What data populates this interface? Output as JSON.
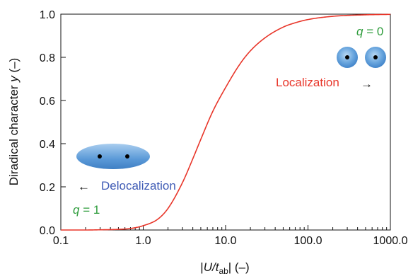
{
  "chart_data": {
    "type": "line",
    "xscale": "log",
    "xlim": [
      0.1,
      1000.0
    ],
    "ylim": [
      0.0,
      1.0
    ],
    "xticks": [
      "0.1",
      "1.0",
      "10.0",
      "100.0",
      "1000.0"
    ],
    "xtick_values": [
      0.1,
      1.0,
      10.0,
      100.0,
      1000.0
    ],
    "yticks": [
      "0.0",
      "0.2",
      "0.4",
      "0.6",
      "0.8",
      "1.0"
    ],
    "ytick_values": [
      0.0,
      0.2,
      0.4,
      0.6,
      0.8,
      1.0
    ],
    "ylabel": {
      "pre": "Diradical character ",
      "var": "y",
      "post": " (–)"
    },
    "xlabel": {
      "pre": "|",
      "var": "U/t",
      "sub": "ab",
      "post": "| (–)"
    },
    "grid": false,
    "series": [
      {
        "color": "#e8362a",
        "x": [
          0.1,
          0.2,
          0.3,
          0.5,
          0.7,
          1.0,
          1.5,
          2.0,
          3.0,
          4.0,
          5.0,
          7.0,
          10.0,
          15.0,
          20.0,
          30.0,
          50.0,
          70.0,
          100.0,
          200.0,
          500.0,
          1000.0
        ],
        "y": [
          0.0,
          0.0,
          0.001,
          0.003,
          0.007,
          0.02,
          0.05,
          0.1,
          0.22,
          0.33,
          0.42,
          0.55,
          0.66,
          0.77,
          0.83,
          0.89,
          0.94,
          0.96,
          0.975,
          0.99,
          0.997,
          0.999
        ]
      }
    ],
    "annotations": {
      "q0": {
        "pre": "q",
        "post": " = 0",
        "color": "#2e9c3c"
      },
      "q1": {
        "pre": "q",
        "post": " = 1",
        "color": "#2e9c3c"
      },
      "localization": {
        "text": "Localization",
        "arrow": "→",
        "color": "#e8362a"
      },
      "delocalization": {
        "text": "Delocalization",
        "arrow": "←",
        "color": "#3f5bb5"
      }
    }
  }
}
